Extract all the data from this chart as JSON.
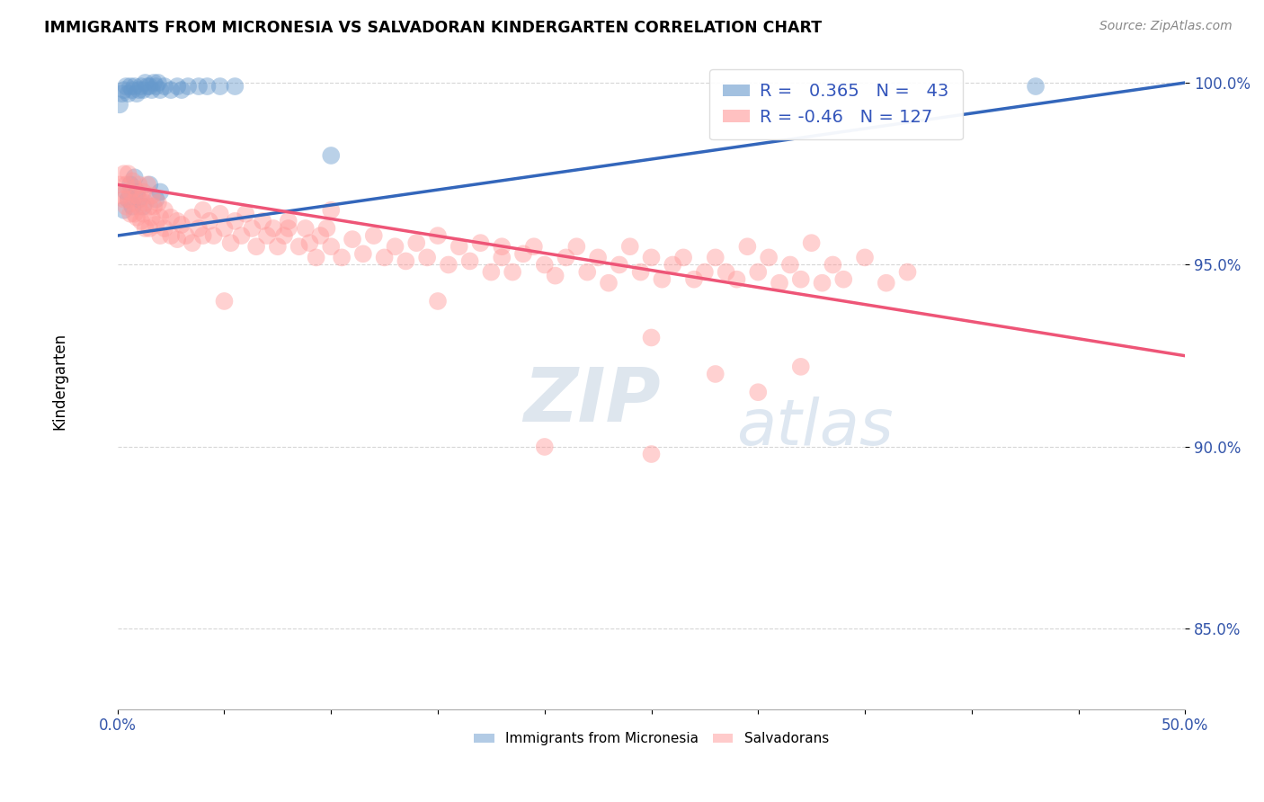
{
  "title": "IMMIGRANTS FROM MICRONESIA VS SALVADORAN KINDERGARTEN CORRELATION CHART",
  "source": "Source: ZipAtlas.com",
  "ylabel": "Kindergarten",
  "xlim": [
    0.0,
    0.5
  ],
  "ylim": [
    0.828,
    1.008
  ],
  "xticks": [
    0.0,
    0.05,
    0.1,
    0.15,
    0.2,
    0.25,
    0.3,
    0.35,
    0.4,
    0.45,
    0.5
  ],
  "xticklabels": [
    "0.0%",
    "",
    "",
    "",
    "",
    "",
    "",
    "",
    "",
    "",
    "50.0%"
  ],
  "yticks": [
    0.85,
    0.9,
    0.95,
    1.0
  ],
  "yticklabels": [
    "85.0%",
    "90.0%",
    "95.0%",
    "100.0%"
  ],
  "blue_R": 0.365,
  "blue_N": 43,
  "pink_R": -0.46,
  "pink_N": 127,
  "blue_color": "#6699CC",
  "pink_color": "#FF9999",
  "blue_line_color": "#3366BB",
  "pink_line_color": "#EE5577",
  "watermark_top": "ZIP",
  "watermark_bot": "atlas",
  "legend_label_blue": "Immigrants from Micronesia",
  "legend_label_pink": "Salvadorans",
  "blue_line_x": [
    0.0,
    0.5
  ],
  "blue_line_y": [
    0.958,
    1.0
  ],
  "pink_line_x": [
    0.0,
    0.5
  ],
  "pink_line_y": [
    0.972,
    0.925
  ],
  "blue_points": [
    [
      0.001,
      0.994
    ],
    [
      0.002,
      0.997
    ],
    [
      0.003,
      0.998
    ],
    [
      0.004,
      0.999
    ],
    [
      0.005,
      0.997
    ],
    [
      0.006,
      0.999
    ],
    [
      0.007,
      0.998
    ],
    [
      0.008,
      0.999
    ],
    [
      0.009,
      0.997
    ],
    [
      0.01,
      0.998
    ],
    [
      0.011,
      0.999
    ],
    [
      0.012,
      0.998
    ],
    [
      0.013,
      1.0
    ],
    [
      0.014,
      0.999
    ],
    [
      0.015,
      0.999
    ],
    [
      0.016,
      0.998
    ],
    [
      0.017,
      1.0
    ],
    [
      0.018,
      0.999
    ],
    [
      0.019,
      1.0
    ],
    [
      0.02,
      0.998
    ],
    [
      0.022,
      0.999
    ],
    [
      0.025,
      0.998
    ],
    [
      0.028,
      0.999
    ],
    [
      0.03,
      0.998
    ],
    [
      0.033,
      0.999
    ],
    [
      0.038,
      0.999
    ],
    [
      0.042,
      0.999
    ],
    [
      0.048,
      0.999
    ],
    [
      0.055,
      0.999
    ],
    [
      0.003,
      0.965
    ],
    [
      0.004,
      0.97
    ],
    [
      0.005,
      0.968
    ],
    [
      0.006,
      0.972
    ],
    [
      0.007,
      0.966
    ],
    [
      0.008,
      0.974
    ],
    [
      0.009,
      0.97
    ],
    [
      0.01,
      0.968
    ],
    [
      0.012,
      0.966
    ],
    [
      0.015,
      0.972
    ],
    [
      0.018,
      0.968
    ],
    [
      0.02,
      0.97
    ],
    [
      0.43,
      0.999
    ],
    [
      0.1,
      0.98
    ]
  ],
  "pink_points": [
    [
      0.001,
      0.972
    ],
    [
      0.002,
      0.969
    ],
    [
      0.003,
      0.975
    ],
    [
      0.003,
      0.968
    ],
    [
      0.004,
      0.966
    ],
    [
      0.004,
      0.972
    ],
    [
      0.005,
      0.975
    ],
    [
      0.005,
      0.968
    ],
    [
      0.006,
      0.97
    ],
    [
      0.006,
      0.964
    ],
    [
      0.007,
      0.973
    ],
    [
      0.007,
      0.967
    ],
    [
      0.008,
      0.971
    ],
    [
      0.008,
      0.964
    ],
    [
      0.009,
      0.969
    ],
    [
      0.009,
      0.963
    ],
    [
      0.01,
      0.972
    ],
    [
      0.01,
      0.966
    ],
    [
      0.011,
      0.968
    ],
    [
      0.011,
      0.962
    ],
    [
      0.012,
      0.97
    ],
    [
      0.012,
      0.964
    ],
    [
      0.013,
      0.967
    ],
    [
      0.013,
      0.96
    ],
    [
      0.014,
      0.972
    ],
    [
      0.015,
      0.966
    ],
    [
      0.015,
      0.96
    ],
    [
      0.016,
      0.969
    ],
    [
      0.016,
      0.963
    ],
    [
      0.017,
      0.966
    ],
    [
      0.018,
      0.961
    ],
    [
      0.019,
      0.967
    ],
    [
      0.02,
      0.963
    ],
    [
      0.02,
      0.958
    ],
    [
      0.022,
      0.965
    ],
    [
      0.022,
      0.96
    ],
    [
      0.025,
      0.963
    ],
    [
      0.025,
      0.958
    ],
    [
      0.028,
      0.962
    ],
    [
      0.028,
      0.957
    ],
    [
      0.03,
      0.961
    ],
    [
      0.032,
      0.958
    ],
    [
      0.035,
      0.963
    ],
    [
      0.035,
      0.956
    ],
    [
      0.038,
      0.96
    ],
    [
      0.04,
      0.965
    ],
    [
      0.04,
      0.958
    ],
    [
      0.043,
      0.962
    ],
    [
      0.045,
      0.958
    ],
    [
      0.048,
      0.964
    ],
    [
      0.05,
      0.96
    ],
    [
      0.053,
      0.956
    ],
    [
      0.055,
      0.962
    ],
    [
      0.058,
      0.958
    ],
    [
      0.06,
      0.964
    ],
    [
      0.063,
      0.96
    ],
    [
      0.065,
      0.955
    ],
    [
      0.068,
      0.962
    ],
    [
      0.07,
      0.958
    ],
    [
      0.073,
      0.96
    ],
    [
      0.075,
      0.955
    ],
    [
      0.078,
      0.958
    ],
    [
      0.08,
      0.962
    ],
    [
      0.085,
      0.955
    ],
    [
      0.088,
      0.96
    ],
    [
      0.09,
      0.956
    ],
    [
      0.093,
      0.952
    ],
    [
      0.095,
      0.958
    ],
    [
      0.098,
      0.96
    ],
    [
      0.1,
      0.955
    ],
    [
      0.105,
      0.952
    ],
    [
      0.11,
      0.957
    ],
    [
      0.115,
      0.953
    ],
    [
      0.12,
      0.958
    ],
    [
      0.125,
      0.952
    ],
    [
      0.13,
      0.955
    ],
    [
      0.135,
      0.951
    ],
    [
      0.14,
      0.956
    ],
    [
      0.145,
      0.952
    ],
    [
      0.15,
      0.958
    ],
    [
      0.155,
      0.95
    ],
    [
      0.16,
      0.955
    ],
    [
      0.165,
      0.951
    ],
    [
      0.17,
      0.956
    ],
    [
      0.175,
      0.948
    ],
    [
      0.18,
      0.952
    ],
    [
      0.185,
      0.948
    ],
    [
      0.19,
      0.953
    ],
    [
      0.195,
      0.955
    ],
    [
      0.2,
      0.95
    ],
    [
      0.205,
      0.947
    ],
    [
      0.21,
      0.952
    ],
    [
      0.215,
      0.955
    ],
    [
      0.22,
      0.948
    ],
    [
      0.225,
      0.952
    ],
    [
      0.23,
      0.945
    ],
    [
      0.235,
      0.95
    ],
    [
      0.24,
      0.955
    ],
    [
      0.245,
      0.948
    ],
    [
      0.25,
      0.952
    ],
    [
      0.255,
      0.946
    ],
    [
      0.26,
      0.95
    ],
    [
      0.265,
      0.952
    ],
    [
      0.27,
      0.946
    ],
    [
      0.275,
      0.948
    ],
    [
      0.28,
      0.952
    ],
    [
      0.285,
      0.948
    ],
    [
      0.29,
      0.946
    ],
    [
      0.295,
      0.955
    ],
    [
      0.3,
      0.948
    ],
    [
      0.305,
      0.952
    ],
    [
      0.31,
      0.945
    ],
    [
      0.315,
      0.95
    ],
    [
      0.32,
      0.946
    ],
    [
      0.325,
      0.956
    ],
    [
      0.33,
      0.945
    ],
    [
      0.335,
      0.95
    ],
    [
      0.34,
      0.946
    ],
    [
      0.35,
      0.952
    ],
    [
      0.36,
      0.945
    ],
    [
      0.37,
      0.948
    ],
    [
      0.25,
      0.898
    ],
    [
      0.28,
      0.92
    ],
    [
      0.3,
      0.915
    ],
    [
      0.32,
      0.922
    ],
    [
      0.08,
      0.96
    ],
    [
      0.15,
      0.94
    ],
    [
      0.2,
      0.9
    ],
    [
      0.25,
      0.93
    ],
    [
      0.05,
      0.94
    ],
    [
      0.1,
      0.965
    ],
    [
      0.18,
      0.955
    ]
  ]
}
